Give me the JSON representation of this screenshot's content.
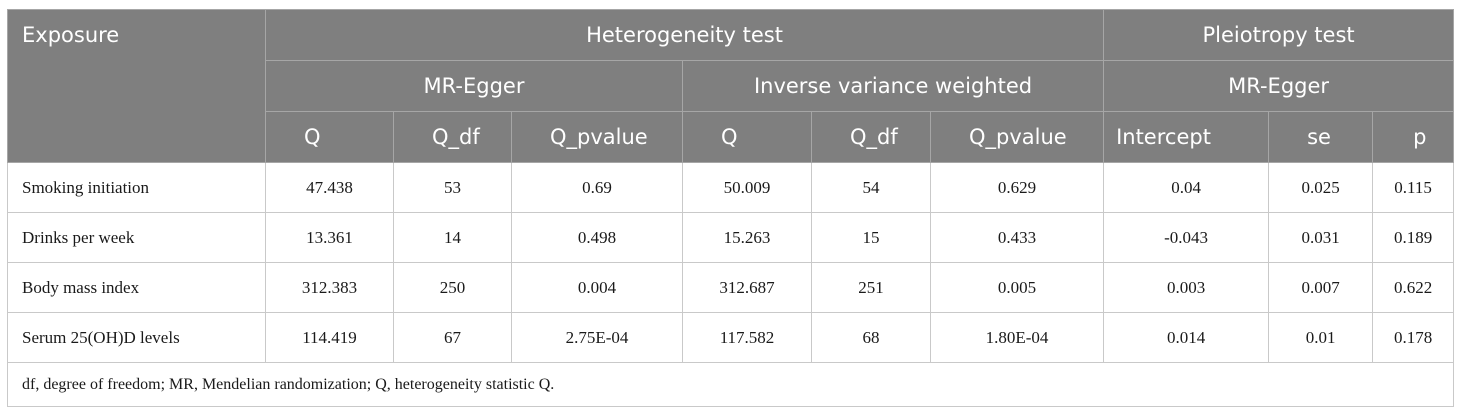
{
  "header": {
    "exposure": "Exposure",
    "heterogeneity": "Heterogeneity test",
    "pleiotropy": "Pleiotropy test",
    "mr_egger_het": "MR-Egger",
    "ivw": "Inverse variance weighted",
    "mr_egger_pleio": "MR-Egger",
    "cols": [
      "Q",
      "Q_df",
      "Q_pvalue",
      "Q",
      "Q_df",
      "Q_pvalue",
      "Intercept",
      "se",
      "p"
    ]
  },
  "rows": [
    {
      "name": "Smoking initiation",
      "cells": [
        "47.438",
        "53",
        "0.69",
        "50.009",
        "54",
        "0.629",
        "0.04",
        "0.025",
        "0.115"
      ]
    },
    {
      "name": "Drinks per week",
      "cells": [
        "13.361",
        "14",
        "0.498",
        "15.263",
        "15",
        "0.433",
        "-0.043",
        "0.031",
        "0.189"
      ]
    },
    {
      "name": "Body mass index",
      "cells": [
        "312.383",
        "250",
        "0.004",
        "312.687",
        "251",
        "0.005",
        "0.003",
        "0.007",
        "0.622"
      ]
    },
    {
      "name": "Serum 25(OH)D levels",
      "cells": [
        "114.419",
        "67",
        "2.75E-04",
        "117.582",
        "68",
        "1.80E-04",
        "0.014",
        "0.01",
        "0.178"
      ]
    }
  ],
  "footnote": "df, degree of freedom; MR, Mendelian randomization; Q, heterogeneity statistic Q."
}
